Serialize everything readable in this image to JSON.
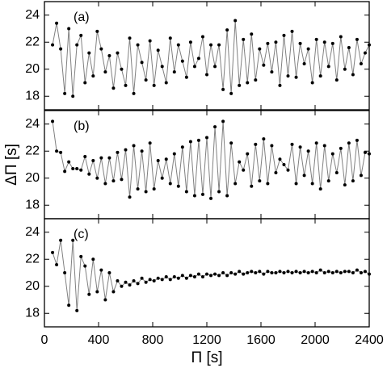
{
  "chart_data": [
    {
      "type": "line",
      "annotation": "(a)",
      "color": "#000000",
      "line_color": "#808080",
      "xlim": [
        0,
        2400
      ],
      "xticks": [
        0,
        400,
        800,
        1200,
        1600,
        2000,
        2400
      ],
      "ylim": [
        17,
        25
      ],
      "yticks": [
        18,
        20,
        22,
        24
      ],
      "x": [
        60,
        90,
        120,
        150,
        180,
        210,
        240,
        270,
        300,
        330,
        360,
        390,
        420,
        450,
        480,
        510,
        540,
        570,
        600,
        630,
        660,
        690,
        720,
        750,
        780,
        810,
        840,
        870,
        900,
        930,
        960,
        990,
        1020,
        1050,
        1080,
        1110,
        1140,
        1170,
        1200,
        1230,
        1260,
        1290,
        1320,
        1350,
        1380,
        1410,
        1440,
        1470,
        1500,
        1530,
        1560,
        1590,
        1620,
        1650,
        1680,
        1710,
        1740,
        1770,
        1800,
        1830,
        1860,
        1890,
        1920,
        1950,
        1980,
        2010,
        2040,
        2070,
        2100,
        2130,
        2160,
        2190,
        2220,
        2250,
        2280,
        2310,
        2340,
        2370,
        2400
      ],
      "values": [
        21.8,
        23.4,
        21.5,
        18.2,
        23.0,
        18.0,
        21.8,
        22.5,
        19.0,
        21.2,
        19.5,
        22.8,
        21.5,
        19.8,
        21.0,
        18.6,
        21.2,
        20.0,
        18.8,
        22.3,
        18.2,
        21.8,
        20.5,
        19.2,
        22.1,
        18.8,
        21.4,
        20.2,
        19.0,
        22.3,
        19.8,
        21.8,
        20.6,
        19.4,
        22.0,
        20.2,
        20.8,
        22.4,
        19.6,
        21.8,
        20.2,
        21.8,
        18.5,
        22.9,
        18.2,
        23.6,
        18.8,
        22.2,
        19.0,
        22.6,
        19.2,
        21.5,
        20.3,
        21.9,
        19.8,
        22.0,
        18.8,
        22.5,
        19.5,
        22.8,
        19.4,
        21.9,
        20.4,
        21.5,
        19.0,
        22.2,
        19.5,
        22.0,
        20.2,
        21.9,
        19.2,
        22.4,
        20.0,
        21.6,
        19.6,
        22.2,
        20.4,
        21.2,
        21.8
      ]
    },
    {
      "type": "line",
      "annotation": "(b)",
      "ylabel": "ΔΠ [s]",
      "color": "#000000",
      "line_color": "#808080",
      "xlim": [
        0,
        2400
      ],
      "xticks": [
        0,
        400,
        800,
        1200,
        1600,
        2000,
        2400
      ],
      "ylim": [
        17,
        25
      ],
      "yticks": [
        18,
        20,
        22,
        24
      ],
      "x": [
        60,
        90,
        120,
        150,
        180,
        210,
        240,
        270,
        300,
        330,
        360,
        390,
        420,
        450,
        480,
        510,
        540,
        570,
        600,
        630,
        660,
        690,
        720,
        750,
        780,
        810,
        840,
        870,
        900,
        930,
        960,
        990,
        1020,
        1050,
        1080,
        1110,
        1140,
        1170,
        1200,
        1230,
        1260,
        1290,
        1320,
        1350,
        1380,
        1410,
        1440,
        1470,
        1500,
        1530,
        1560,
        1590,
        1620,
        1650,
        1680,
        1710,
        1740,
        1770,
        1800,
        1830,
        1860,
        1890,
        1920,
        1950,
        1980,
        2010,
        2040,
        2070,
        2100,
        2130,
        2160,
        2190,
        2220,
        2250,
        2280,
        2310,
        2340,
        2370,
        2400
      ],
      "values": [
        24.2,
        22.0,
        21.9,
        20.5,
        21.2,
        20.7,
        20.7,
        20.6,
        21.6,
        20.3,
        21.3,
        20.0,
        21.5,
        19.6,
        21.5,
        19.8,
        21.9,
        19.9,
        22.1,
        18.6,
        22.4,
        19.2,
        22.0,
        19.0,
        22.6,
        19.2,
        21.3,
        20.0,
        21.4,
        19.6,
        21.8,
        19.4,
        22.3,
        19.0,
        22.7,
        18.7,
        22.8,
        18.8,
        23.0,
        18.5,
        23.8,
        19.0,
        24.2,
        18.7,
        22.6,
        19.6,
        21.2,
        20.6,
        21.8,
        19.4,
        22.5,
        19.8,
        22.9,
        19.6,
        22.4,
        20.4,
        21.4,
        21.0,
        20.6,
        22.5,
        19.6,
        22.3,
        20.2,
        22.0,
        19.6,
        22.6,
        19.2,
        22.4,
        19.8,
        21.8,
        20.4,
        22.2,
        19.5,
        22.6,
        19.8,
        22.8,
        20.2,
        21.9,
        21.8
      ]
    },
    {
      "type": "line",
      "annotation": "(c)",
      "xlabel": "Π [s]",
      "color": "#000000",
      "line_color": "#808080",
      "xlim": [
        0,
        2400
      ],
      "xticks": [
        0,
        400,
        800,
        1200,
        1600,
        2000,
        2400
      ],
      "ylim": [
        17,
        25
      ],
      "yticks": [
        18,
        20,
        22,
        24
      ],
      "x": [
        60,
        90,
        120,
        150,
        180,
        210,
        240,
        270,
        300,
        330,
        360,
        390,
        420,
        450,
        480,
        510,
        540,
        570,
        600,
        630,
        660,
        690,
        720,
        750,
        780,
        810,
        840,
        870,
        900,
        930,
        960,
        990,
        1020,
        1050,
        1080,
        1110,
        1140,
        1170,
        1200,
        1230,
        1260,
        1290,
        1320,
        1350,
        1380,
        1410,
        1440,
        1470,
        1500,
        1530,
        1560,
        1590,
        1620,
        1650,
        1680,
        1710,
        1740,
        1770,
        1800,
        1830,
        1860,
        1890,
        1920,
        1950,
        1980,
        2010,
        2040,
        2070,
        2100,
        2130,
        2160,
        2190,
        2220,
        2250,
        2280,
        2310,
        2340,
        2370,
        2400
      ],
      "values": [
        22.5,
        21.6,
        23.4,
        21.0,
        18.6,
        23.4,
        18.2,
        22.2,
        21.5,
        19.4,
        22.0,
        19.6,
        21.2,
        19.0,
        21.0,
        19.6,
        20.4,
        20.0,
        20.3,
        20.1,
        20.4,
        20.2,
        20.6,
        20.3,
        20.5,
        20.4,
        20.6,
        20.5,
        20.7,
        20.5,
        20.7,
        20.6,
        20.8,
        20.6,
        20.8,
        20.7,
        20.9,
        20.7,
        20.9,
        20.8,
        20.9,
        20.8,
        21.0,
        20.8,
        21.0,
        20.9,
        21.1,
        20.9,
        21.0,
        21.1,
        21.0,
        21.1,
        20.9,
        21.1,
        21.0,
        21.0,
        21.1,
        21.0,
        21.1,
        21.0,
        21.1,
        21.0,
        21.1,
        21.0,
        21.1,
        21.0,
        21.2,
        21.0,
        21.1,
        21.0,
        21.1,
        21.0,
        21.1,
        21.1,
        21.0,
        21.2,
        21.0,
        21.1,
        20.9
      ]
    }
  ]
}
